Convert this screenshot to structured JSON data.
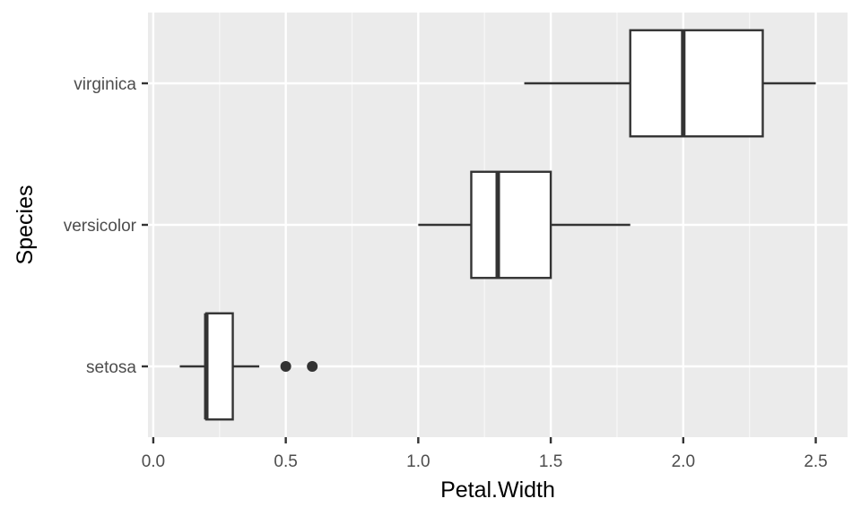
{
  "chart_data": {
    "type": "boxplot",
    "orientation": "horizontal",
    "xlabel": "Petal.Width",
    "ylabel": "Species",
    "xlim": [
      -0.02,
      2.62
    ],
    "x_ticks": [
      0.0,
      0.5,
      1.0,
      1.5,
      2.0,
      2.5
    ],
    "x_tick_labels": [
      "0.0",
      "0.5",
      "1.0",
      "1.5",
      "2.0",
      "2.5"
    ],
    "x_minor_ticks": [
      0.25,
      0.75,
      1.25,
      1.75,
      2.25
    ],
    "categories": [
      "setosa",
      "versicolor",
      "virginica"
    ],
    "boxes": [
      {
        "category": "setosa",
        "whisker_low": 0.1,
        "q1": 0.2,
        "median": 0.2,
        "q3": 0.3,
        "whisker_high": 0.4,
        "outliers": [
          0.5,
          0.6
        ]
      },
      {
        "category": "versicolor",
        "whisker_low": 1.0,
        "q1": 1.2,
        "median": 1.3,
        "q3": 1.5,
        "whisker_high": 1.8,
        "outliers": []
      },
      {
        "category": "virginica",
        "whisker_low": 1.4,
        "q1": 1.8,
        "median": 2.0,
        "q3": 2.3,
        "whisker_high": 2.5,
        "outliers": []
      }
    ],
    "grid": true,
    "colors": {
      "panel_background": "#ebebeb",
      "grid_major": "#ffffff",
      "grid_minor": "#f7f7f7",
      "box_fill": "#ffffff",
      "box_line": "#333333",
      "outlier": "#333333",
      "tick_mark": "#333333"
    }
  }
}
